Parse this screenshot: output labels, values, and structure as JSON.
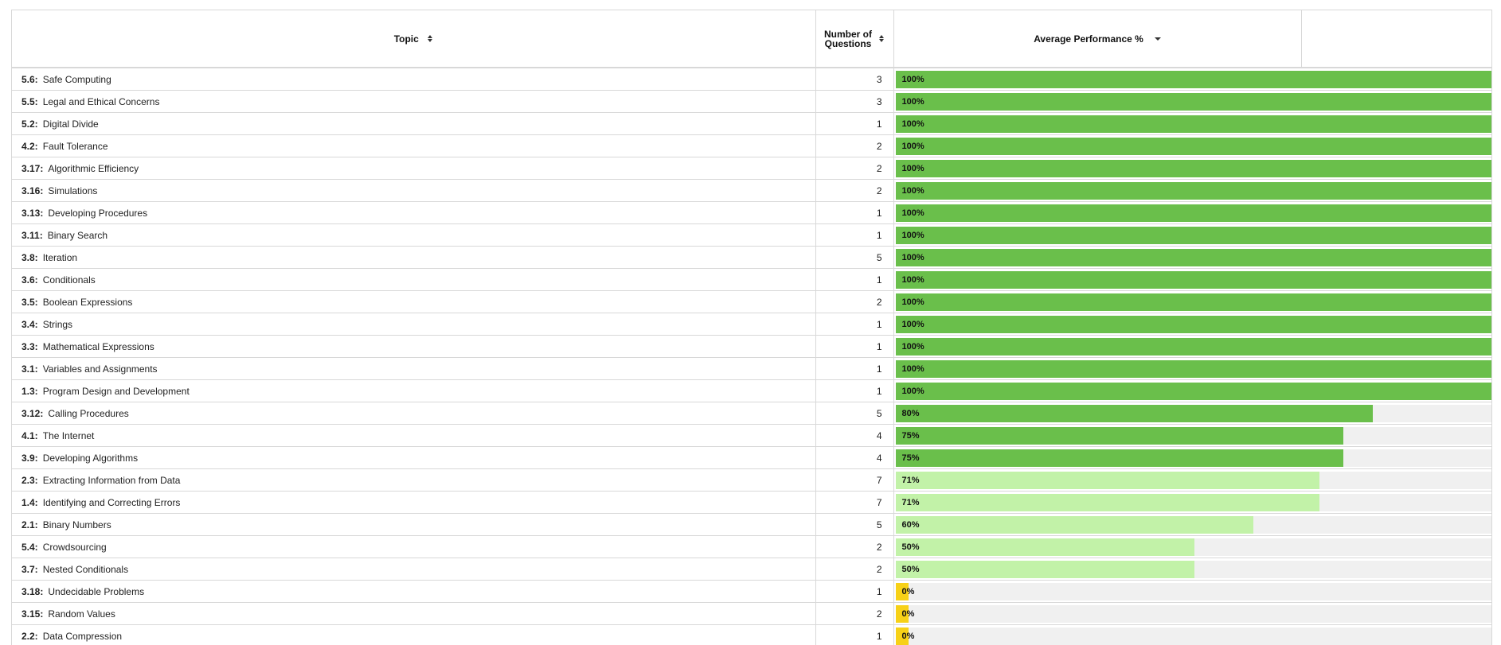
{
  "header": {
    "topic_label": "Topic",
    "num_label": "Number of Questions",
    "perf_label": "Average Performance %"
  },
  "colors": {
    "high": "#6abf4b",
    "mid": "#c2f2a8",
    "low": "#f7d117"
  },
  "rows": [
    {
      "code": "5.6:",
      "name": "Safe Computing",
      "count": "3",
      "pct": 100,
      "pct_label": "100%",
      "level": "high"
    },
    {
      "code": "5.5:",
      "name": "Legal and Ethical Concerns",
      "count": "3",
      "pct": 100,
      "pct_label": "100%",
      "level": "high"
    },
    {
      "code": "5.2:",
      "name": "Digital Divide",
      "count": "1",
      "pct": 100,
      "pct_label": "100%",
      "level": "high"
    },
    {
      "code": "4.2:",
      "name": "Fault Tolerance",
      "count": "2",
      "pct": 100,
      "pct_label": "100%",
      "level": "high"
    },
    {
      "code": "3.17:",
      "name": "Algorithmic Efficiency",
      "count": "2",
      "pct": 100,
      "pct_label": "100%",
      "level": "high"
    },
    {
      "code": "3.16:",
      "name": "Simulations",
      "count": "2",
      "pct": 100,
      "pct_label": "100%",
      "level": "high"
    },
    {
      "code": "3.13:",
      "name": "Developing Procedures",
      "count": "1",
      "pct": 100,
      "pct_label": "100%",
      "level": "high"
    },
    {
      "code": "3.11:",
      "name": "Binary Search",
      "count": "1",
      "pct": 100,
      "pct_label": "100%",
      "level": "high"
    },
    {
      "code": "3.8:",
      "name": "Iteration",
      "count": "5",
      "pct": 100,
      "pct_label": "100%",
      "level": "high"
    },
    {
      "code": "3.6:",
      "name": "Conditionals",
      "count": "1",
      "pct": 100,
      "pct_label": "100%",
      "level": "high"
    },
    {
      "code": "3.5:",
      "name": "Boolean Expressions",
      "count": "2",
      "pct": 100,
      "pct_label": "100%",
      "level": "high"
    },
    {
      "code": "3.4:",
      "name": "Strings",
      "count": "1",
      "pct": 100,
      "pct_label": "100%",
      "level": "high"
    },
    {
      "code": "3.3:",
      "name": "Mathematical Expressions",
      "count": "1",
      "pct": 100,
      "pct_label": "100%",
      "level": "high"
    },
    {
      "code": "3.1:",
      "name": "Variables and Assignments",
      "count": "1",
      "pct": 100,
      "pct_label": "100%",
      "level": "high"
    },
    {
      "code": "1.3:",
      "name": "Program Design and Development",
      "count": "1",
      "pct": 100,
      "pct_label": "100%",
      "level": "high"
    },
    {
      "code": "3.12:",
      "name": "Calling Procedures",
      "count": "5",
      "pct": 80,
      "pct_label": "80%",
      "level": "high"
    },
    {
      "code": "4.1:",
      "name": "The Internet",
      "count": "4",
      "pct": 75,
      "pct_label": "75%",
      "level": "high"
    },
    {
      "code": "3.9:",
      "name": "Developing Algorithms",
      "count": "4",
      "pct": 75,
      "pct_label": "75%",
      "level": "high"
    },
    {
      "code": "2.3:",
      "name": "Extracting Information from Data",
      "count": "7",
      "pct": 71,
      "pct_label": "71%",
      "level": "mid"
    },
    {
      "code": "1.4:",
      "name": "Identifying and Correcting Errors",
      "count": "7",
      "pct": 71,
      "pct_label": "71%",
      "level": "mid"
    },
    {
      "code": "2.1:",
      "name": "Binary Numbers",
      "count": "5",
      "pct": 60,
      "pct_label": "60%",
      "level": "mid"
    },
    {
      "code": "5.4:",
      "name": "Crowdsourcing",
      "count": "2",
      "pct": 50,
      "pct_label": "50%",
      "level": "mid"
    },
    {
      "code": "3.7:",
      "name": "Nested Conditionals",
      "count": "2",
      "pct": 50,
      "pct_label": "50%",
      "level": "mid"
    },
    {
      "code": "3.18:",
      "name": "Undecidable Problems",
      "count": "1",
      "pct": 0,
      "pct_label": "0%",
      "level": "low"
    },
    {
      "code": "3.15:",
      "name": "Random Values",
      "count": "2",
      "pct": 0,
      "pct_label": "0%",
      "level": "low"
    },
    {
      "code": "2.2:",
      "name": "Data Compression",
      "count": "1",
      "pct": 0,
      "pct_label": "0%",
      "level": "low"
    }
  ]
}
